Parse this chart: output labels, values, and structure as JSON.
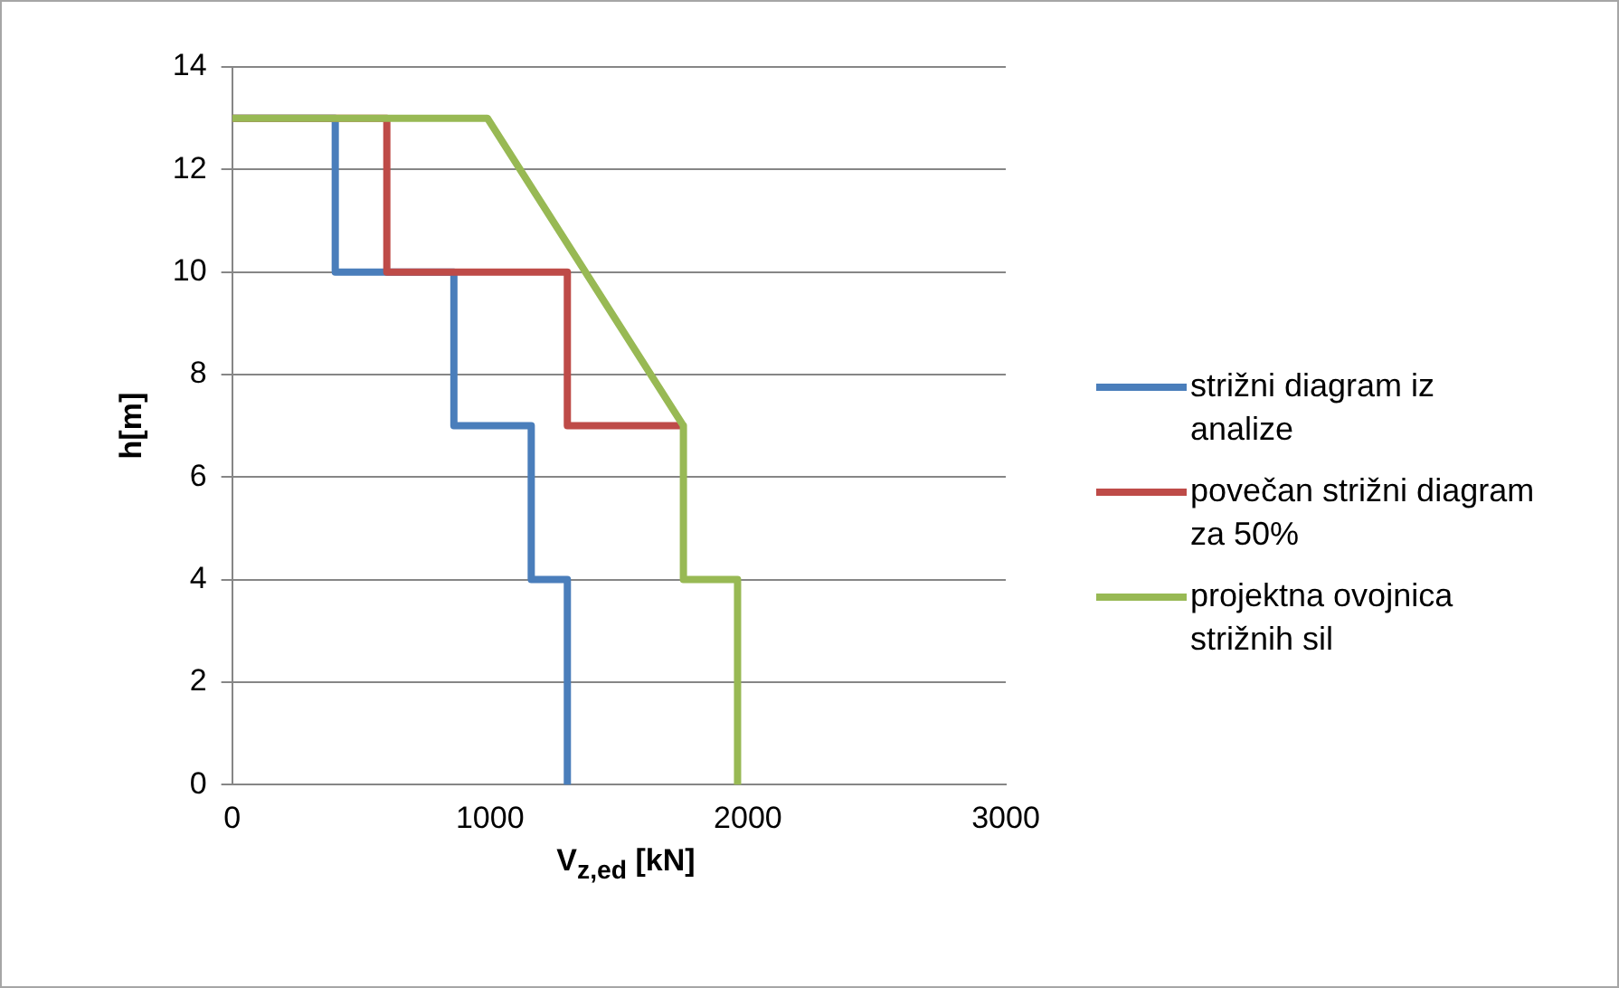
{
  "chart_data": {
    "type": "line",
    "xlabel": "V$_{z,ed}$ [kN]",
    "ylabel": "h[m]",
    "xlim": [
      0,
      3000
    ],
    "xticks": [
      0,
      1000,
      2000,
      3000
    ],
    "ylim": [
      0,
      14
    ],
    "yticks": [
      0,
      2,
      4,
      6,
      8,
      10,
      12,
      14
    ],
    "grid": "y",
    "legend": "right",
    "marker": "none",
    "line_style": "solid",
    "series": [
      {
        "name": "strižni diagram iz analize",
        "color": "#4a7ebb",
        "x": [
          0,
          400,
          400,
          860,
          860,
          1160,
          1160,
          1300,
          1300
        ],
        "values": [
          13,
          13,
          10,
          10,
          7,
          7,
          4,
          4,
          0
        ]
      },
      {
        "name": "povečan strižni diagram za 50%",
        "color": "#be4b48",
        "x": [
          0,
          600,
          600,
          1300,
          1300,
          1750
        ],
        "values": [
          13,
          13,
          10,
          10,
          7,
          7
        ]
      },
      {
        "name": "projektna ovojnica strižnih sil",
        "color": "#98b954",
        "x": [
          0,
          990,
          1750,
          1750,
          1960,
          1960
        ],
        "values": [
          13,
          13,
          7,
          4,
          4,
          0
        ]
      }
    ]
  }
}
